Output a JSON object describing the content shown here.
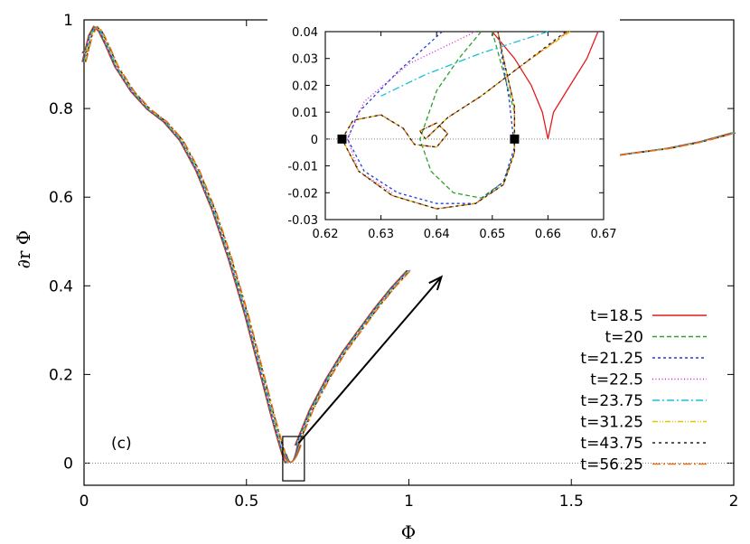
{
  "chart_data": [
    {
      "type": "line",
      "panel_label": "(c)",
      "xlabel": "Φ",
      "ylabel": "∂r Φ",
      "xlim": [
        0,
        2
      ],
      "ylim": [
        -0.05,
        1.0
      ],
      "x_ticks": [
        "0",
        "0.5",
        "1",
        "1.5",
        "2"
      ],
      "y_ticks": [
        "0",
        "0.2",
        "0.4",
        "0.6",
        "0.8",
        "1"
      ],
      "zero_line": true,
      "legend_position": "bottom-right",
      "series": [
        {
          "name": "t=18.5",
          "color": "#e41a1c",
          "dash": "solid"
        },
        {
          "name": "t=20",
          "color": "#2ca02c",
          "dash": "5,3"
        },
        {
          "name": "t=21.25",
          "color": "#1f3fd6",
          "dash": "3,3"
        },
        {
          "name": "t=22.5",
          "color": "#d81bd8",
          "dash": "1,2.5"
        },
        {
          "name": "t=23.75",
          "color": "#17c0d8",
          "dash": "8,3,2,3"
        },
        {
          "name": "t=31.25",
          "color": "#e0c800",
          "dash": "6,2,1,2,1,2"
        },
        {
          "name": "t=43.75",
          "color": "#222222",
          "dash": "3,4"
        },
        {
          "name": "t=56.25",
          "color": "#e8701a",
          "dash": "9,3,2,3"
        }
      ],
      "main_curve": {
        "x": [
          0.0,
          0.01,
          0.02,
          0.035,
          0.05,
          0.07,
          0.1,
          0.15,
          0.2,
          0.25,
          0.3,
          0.35,
          0.4,
          0.45,
          0.5,
          0.55,
          0.58,
          0.6,
          0.615,
          0.625
        ],
        "y": [
          0.905,
          0.935,
          0.965,
          0.985,
          0.975,
          0.945,
          0.895,
          0.838,
          0.798,
          0.77,
          0.728,
          0.66,
          0.57,
          0.46,
          0.335,
          0.195,
          0.11,
          0.057,
          0.02,
          0.0
        ]
      },
      "upper_branch": {
        "x": [
          0.655,
          0.7,
          0.75,
          0.8,
          0.85,
          0.9,
          0.95,
          1.0
        ],
        "y": [
          0.04,
          0.12,
          0.19,
          0.25,
          0.3,
          0.35,
          0.395,
          0.435
        ]
      },
      "right_tail": {
        "x": [
          1.5,
          1.6,
          1.7,
          1.8,
          1.9,
          2.0
        ],
        "y": [
          0.68,
          0.69,
          0.7,
          0.71,
          0.725,
          0.745
        ]
      },
      "left_tail": {
        "x": [
          0.0,
          0.005,
          0.01
        ],
        "y": [
          0.925,
          0.93,
          0.935
        ]
      },
      "zoom_box": {
        "x": [
          0.62,
          0.67
        ],
        "y": [
          -0.03,
          0.04
        ]
      }
    },
    {
      "type": "line",
      "inset": true,
      "xlim": [
        0.62,
        0.67
      ],
      "ylim": [
        -0.03,
        0.04
      ],
      "x_ticks": [
        "0.62",
        "0.63",
        "0.64",
        "0.65",
        "0.66",
        "0.67"
      ],
      "y_ticks": [
        "-0.03",
        "-0.02",
        "-0.01",
        "0",
        "0.01",
        "0.02",
        "0.03",
        "0.04"
      ],
      "zero_line": true,
      "markers": [
        {
          "x": 0.623,
          "y": 0.0,
          "shape": "square"
        },
        {
          "x": 0.654,
          "y": 0.0,
          "shape": "square"
        }
      ]
    }
  ]
}
